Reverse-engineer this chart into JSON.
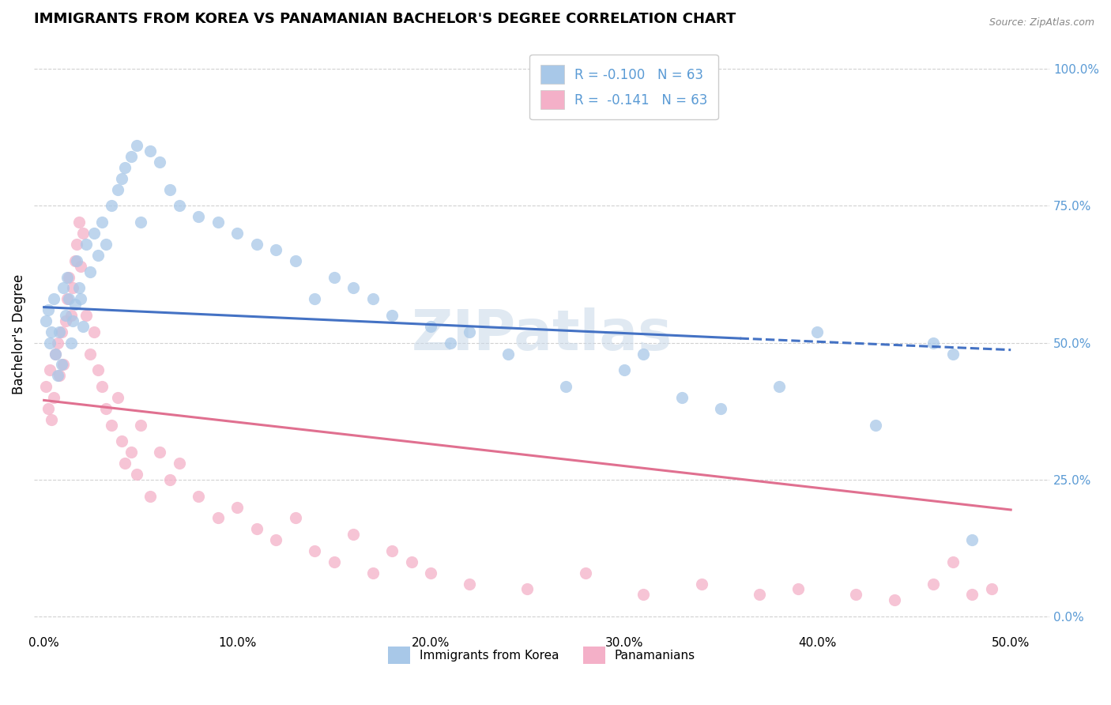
{
  "title": "IMMIGRANTS FROM KOREA VS PANAMANIAN BACHELOR'S DEGREE CORRELATION CHART",
  "source": "Source: ZipAtlas.com",
  "xlabel_ticks": [
    "0.0%",
    "10.0%",
    "20.0%",
    "30.0%",
    "40.0%",
    "50.0%"
  ],
  "ylabel_ticks": [
    "0.0%",
    "25.0%",
    "50.0%",
    "75.0%",
    "100.0%"
  ],
  "xlabel_tick_vals": [
    0.0,
    0.1,
    0.2,
    0.3,
    0.4,
    0.5
  ],
  "ylabel_tick_vals": [
    0.0,
    0.25,
    0.5,
    0.75,
    1.0
  ],
  "xlim": [
    -0.005,
    0.52
  ],
  "ylim": [
    -0.03,
    1.06
  ],
  "ylabel": "Bachelor's Degree",
  "bottom_legend": [
    "Immigrants from Korea",
    "Panamanians"
  ],
  "blue_color": "#a8c8e8",
  "pink_color": "#f4b0c8",
  "blue_line_color": "#4472c4",
  "pink_line_color": "#e07090",
  "blue_scatter": {
    "x": [
      0.001,
      0.002,
      0.003,
      0.004,
      0.005,
      0.006,
      0.007,
      0.008,
      0.009,
      0.01,
      0.011,
      0.012,
      0.013,
      0.014,
      0.015,
      0.016,
      0.017,
      0.018,
      0.019,
      0.02,
      0.022,
      0.024,
      0.026,
      0.028,
      0.03,
      0.032,
      0.035,
      0.038,
      0.04,
      0.042,
      0.045,
      0.048,
      0.05,
      0.055,
      0.06,
      0.065,
      0.07,
      0.08,
      0.09,
      0.1,
      0.11,
      0.12,
      0.13,
      0.14,
      0.15,
      0.16,
      0.17,
      0.18,
      0.2,
      0.21,
      0.22,
      0.24,
      0.27,
      0.3,
      0.31,
      0.33,
      0.35,
      0.38,
      0.4,
      0.43,
      0.46,
      0.47,
      0.48
    ],
    "y": [
      0.54,
      0.56,
      0.5,
      0.52,
      0.58,
      0.48,
      0.44,
      0.52,
      0.46,
      0.6,
      0.55,
      0.62,
      0.58,
      0.5,
      0.54,
      0.57,
      0.65,
      0.6,
      0.58,
      0.53,
      0.68,
      0.63,
      0.7,
      0.66,
      0.72,
      0.68,
      0.75,
      0.78,
      0.8,
      0.82,
      0.84,
      0.86,
      0.72,
      0.85,
      0.83,
      0.78,
      0.75,
      0.73,
      0.72,
      0.7,
      0.68,
      0.67,
      0.65,
      0.58,
      0.62,
      0.6,
      0.58,
      0.55,
      0.53,
      0.5,
      0.52,
      0.48,
      0.42,
      0.45,
      0.48,
      0.4,
      0.38,
      0.42,
      0.52,
      0.35,
      0.5,
      0.48,
      0.14
    ]
  },
  "pink_scatter": {
    "x": [
      0.001,
      0.002,
      0.003,
      0.004,
      0.005,
      0.006,
      0.007,
      0.008,
      0.009,
      0.01,
      0.011,
      0.012,
      0.013,
      0.014,
      0.015,
      0.016,
      0.017,
      0.018,
      0.019,
      0.02,
      0.022,
      0.024,
      0.026,
      0.028,
      0.03,
      0.032,
      0.035,
      0.038,
      0.04,
      0.042,
      0.045,
      0.048,
      0.05,
      0.055,
      0.06,
      0.065,
      0.07,
      0.08,
      0.09,
      0.1,
      0.11,
      0.12,
      0.13,
      0.14,
      0.15,
      0.16,
      0.17,
      0.18,
      0.19,
      0.2,
      0.22,
      0.25,
      0.28,
      0.31,
      0.34,
      0.37,
      0.39,
      0.42,
      0.44,
      0.46,
      0.47,
      0.48,
      0.49
    ],
    "y": [
      0.42,
      0.38,
      0.45,
      0.36,
      0.4,
      0.48,
      0.5,
      0.44,
      0.52,
      0.46,
      0.54,
      0.58,
      0.62,
      0.55,
      0.6,
      0.65,
      0.68,
      0.72,
      0.64,
      0.7,
      0.55,
      0.48,
      0.52,
      0.45,
      0.42,
      0.38,
      0.35,
      0.4,
      0.32,
      0.28,
      0.3,
      0.26,
      0.35,
      0.22,
      0.3,
      0.25,
      0.28,
      0.22,
      0.18,
      0.2,
      0.16,
      0.14,
      0.18,
      0.12,
      0.1,
      0.15,
      0.08,
      0.12,
      0.1,
      0.08,
      0.06,
      0.05,
      0.08,
      0.04,
      0.06,
      0.04,
      0.05,
      0.04,
      0.03,
      0.06,
      0.1,
      0.04,
      0.05
    ]
  },
  "blue_line": {
    "x0": 0.0,
    "x1": 0.36,
    "y0": 0.565,
    "y1": 0.508
  },
  "blue_line_dashed": {
    "x0": 0.36,
    "x1": 0.5,
    "y0": 0.508,
    "y1": 0.487
  },
  "pink_line": {
    "x0": 0.0,
    "x1": 0.5,
    "y0": 0.395,
    "y1": 0.195
  },
  "background_color": "#ffffff",
  "grid_color": "#cccccc",
  "right_axis_color": "#5b9bd5",
  "title_fontsize": 13,
  "axis_label_fontsize": 12,
  "tick_fontsize": 11,
  "watermark": "ZIPatlas",
  "watermark_color": "#c8d8e8",
  "watermark_fontsize": 52,
  "legend_label_blue": "R = -0.100   N = 63",
  "legend_label_pink": "R =  -0.141   N = 63"
}
